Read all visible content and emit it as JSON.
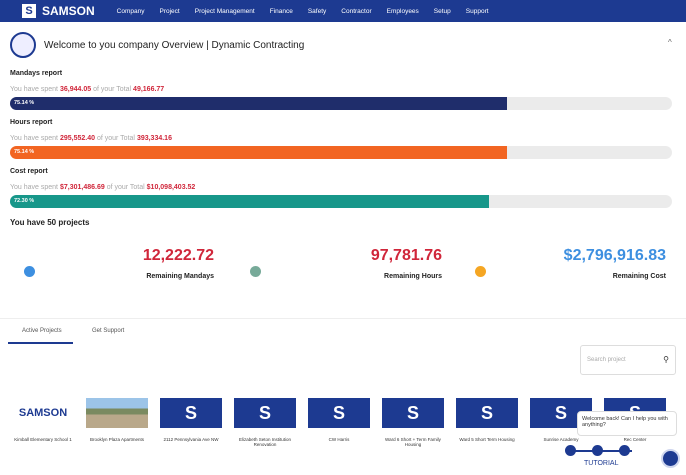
{
  "nav": {
    "logo_letter": "S",
    "brand": "SAMSON",
    "items": [
      "Company",
      "Project",
      "Project Management",
      "Finance",
      "Safety",
      "Contractor",
      "Employees",
      "Setup",
      "Support"
    ]
  },
  "overview": {
    "title": "Welcome to you company Overview | Dynamic Contracting",
    "reports": [
      {
        "title": "Mandays report",
        "spent_prefix": "You have spent",
        "spent": "36,944.05",
        "total_prefix": "of your Total",
        "total": "49,166.77",
        "percent": {
          "value": 75.14,
          "label": "75.14 %"
        },
        "color": "#1f2d6b"
      },
      {
        "title": "Hours report",
        "spent_prefix": "You have spent",
        "spent": "295,552.40",
        "total_prefix": "of your Total",
        "total": "393,334.16",
        "percent": {
          "value": 75.14,
          "label": "75.14 %"
        },
        "color": "#f26522"
      },
      {
        "title": "Cost report",
        "spent_prefix": "You have spent",
        "spent": "$7,301,486.69",
        "total_prefix": "of your Total",
        "total": "$10,098,403.52",
        "percent": {
          "value": 72.3,
          "label": "72.30 %"
        },
        "color": "#17978a"
      }
    ],
    "projects_count": "You have 50 projects",
    "stats": [
      {
        "value": "12,222.72",
        "label": "Remaining Mandays",
        "color": "#d0263a"
      },
      {
        "value": "97,781.76",
        "label": "Remaining Hours",
        "color": "#d0263a"
      },
      {
        "value": "$2,796,916.83",
        "label": "Remaining Cost",
        "color": "#3d8fe0"
      }
    ]
  },
  "tabs": [
    "Active Projects",
    "Get Support"
  ],
  "search_placeholder": "Search project",
  "tile_letter": "S",
  "projects": [
    "Kimball Elementary School 1",
    "Brooklyn Plaza Apartments",
    "2112 Pennsylvania Ave NW",
    "Elizabeth Seton Institution Renovation",
    "CW Harris",
    "Ward 6 Short + Term Family Housing",
    "Ward 5 Short Term Housing",
    "Sunrise Academy",
    "Rec Center"
  ],
  "chat": {
    "message": "Welcome back! Can I help you with anything?",
    "tutorial": "TUTORIAL"
  }
}
